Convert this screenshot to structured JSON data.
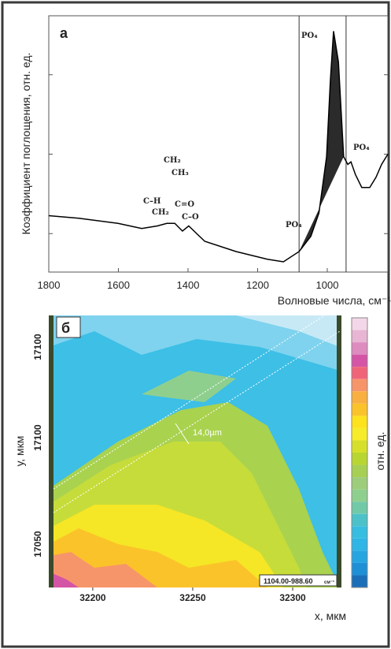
{
  "chart_data": [
    {
      "type": "line",
      "panel_label": "а",
      "y_label": "Коэффициент поглощения, отн. ед.",
      "x_label": "Волновые числа, см⁻¹",
      "x": [
        1800,
        1714,
        1601,
        1533,
        1488,
        1461,
        1438,
        1416,
        1398,
        1352,
        1262,
        1172,
        1126,
        1081,
        1047,
        1024,
        1002,
        991,
        982,
        968,
        953,
        941,
        932,
        919,
        901,
        878,
        860,
        844,
        826
      ],
      "values": [
        0.22,
        0.21,
        0.19,
        0.17,
        0.18,
        0.19,
        0.19,
        0.16,
        0.18,
        0.12,
        0.08,
        0.05,
        0.04,
        0.08,
        0.14,
        0.23,
        0.45,
        0.75,
        0.94,
        0.82,
        0.45,
        0.42,
        0.43,
        0.38,
        0.33,
        0.33,
        0.37,
        0.42,
        0.46
      ],
      "color": "#000000",
      "shade_color": "#2b2b2b",
      "xlim": [
        1800,
        826
      ],
      "ylim": [
        0,
        1
      ],
      "xticks": [
        1800,
        1600,
        1400,
        1200,
        1000
      ],
      "yticks": [
        0.15,
        0.46,
        0.77
      ],
      "vlines": [
        1081,
        946
      ],
      "shaded_range": [
        1081,
        946
      ],
      "annotations": [
        "PO₄",
        "PO₄",
        "PO₄",
        "CH₂",
        "CH₃",
        "C–H",
        "CH₂",
        "C=O",
        "C–O"
      ]
    },
    {
      "type": "map",
      "panel_label": "б",
      "x_label": "x, мкм",
      "y_label": "у, мкм",
      "colorbar_label": "отн. ед.",
      "xlim": [
        32178,
        32323.6
      ],
      "xticks": [
        32200,
        32250,
        32300
      ],
      "y_tick_labels": [
        "17100",
        "17100",
        "17050"
      ],
      "width_label": "14,0µm",
      "range_label": "1104.00-988.60",
      "range_unit": "см⁻¹",
      "colorbar_colors": [
        "#f3d7e8",
        "#e8b6d4",
        "#de8cc0",
        "#d455a6",
        "#f0647a",
        "#f7956a",
        "#f9b040",
        "#fbc32a",
        "#fde21e",
        "#f6ec2a",
        "#d6e02a",
        "#b9d532",
        "#a7cf53",
        "#9dcc7a",
        "#8fcf8e",
        "#71c9a8",
        "#4cc2c8",
        "#37bde0",
        "#2fb5e6",
        "#27a5e0",
        "#1f8fd6",
        "#1a6fb8"
      ]
    }
  ]
}
